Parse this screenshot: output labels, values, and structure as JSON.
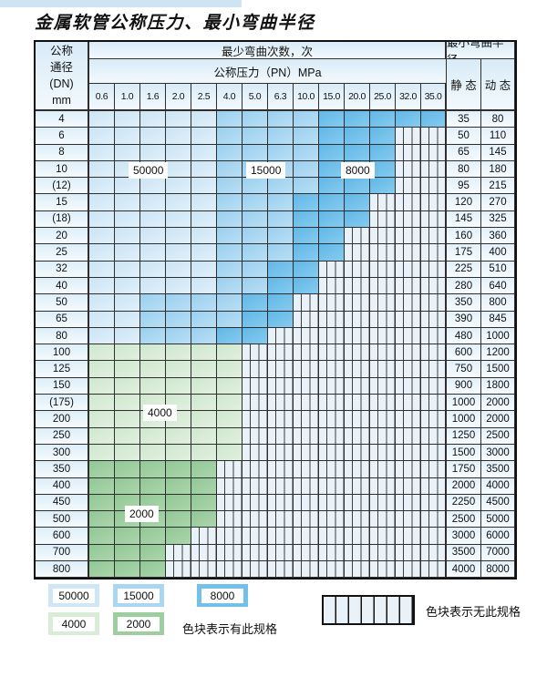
{
  "title": "金属软管公称压力、最小弯曲半径",
  "chart_data": {
    "type": "table",
    "title": "金属软管公称压力、最小弯曲半径",
    "col_group_label": "最少弯曲次数，次",
    "pressure_label": "公称压力（PN）MPa",
    "dn_label_lines": [
      "公称",
      "通径",
      "(DN)",
      "mm"
    ],
    "radius_label": "最小弯曲半径",
    "static_label": "静 态",
    "dynamic_label": "动 态",
    "pressures_mpa": [
      "0.6",
      "1.0",
      "1.6",
      "2.0",
      "2.5",
      "4.0",
      "5.0",
      "6.3",
      "10.0",
      "15.0",
      "20.0",
      "25.0",
      "32.0",
      "35.0"
    ],
    "legend_note_has": "色块表示有此规格",
    "legend_note_none": "色块表示无此规格",
    "cycle_colors": {
      "50000": "#cfe6f5",
      "15000": "#a9d6f0",
      "8000": "#73c1ea",
      "4000": "#d9ecd8",
      "2000": "#9dce9f",
      "no_spec_fill": "#eaf2f9"
    },
    "region_labels": [
      {
        "id": "rl-50000",
        "text": "50000"
      },
      {
        "id": "rl-15000",
        "text": "15000"
      },
      {
        "id": "rl-8000",
        "text": "8000"
      },
      {
        "id": "rl-4000",
        "text": "4000"
      },
      {
        "id": "rl-2000",
        "text": "2000"
      }
    ],
    "rows": [
      {
        "dn": "4",
        "static": "35",
        "dynamic": "80",
        "bands": [
          {
            "cycles": "50000",
            "from": "0.6",
            "to": "2.5"
          },
          {
            "cycles": "15000",
            "from": "4.0",
            "to": "10.0"
          },
          {
            "cycles": "8000",
            "from": "15.0",
            "to": "35.0"
          }
        ]
      },
      {
        "dn": "6",
        "static": "50",
        "dynamic": "110",
        "bands": [
          {
            "cycles": "50000",
            "from": "0.6",
            "to": "2.5"
          },
          {
            "cycles": "15000",
            "from": "4.0",
            "to": "10.0"
          },
          {
            "cycles": "8000",
            "from": "15.0",
            "to": "25.0"
          }
        ]
      },
      {
        "dn": "8",
        "static": "65",
        "dynamic": "145",
        "bands": [
          {
            "cycles": "50000",
            "from": "0.6",
            "to": "2.5"
          },
          {
            "cycles": "15000",
            "from": "4.0",
            "to": "10.0"
          },
          {
            "cycles": "8000",
            "from": "15.0",
            "to": "25.0"
          }
        ]
      },
      {
        "dn": "10",
        "static": "80",
        "dynamic": "180",
        "bands": [
          {
            "cycles": "50000",
            "from": "0.6",
            "to": "2.5"
          },
          {
            "cycles": "15000",
            "from": "4.0",
            "to": "10.0"
          },
          {
            "cycles": "8000",
            "from": "15.0",
            "to": "25.0"
          }
        ]
      },
      {
        "dn": "(12)",
        "static": "95",
        "dynamic": "215",
        "bands": [
          {
            "cycles": "50000",
            "from": "0.6",
            "to": "2.5"
          },
          {
            "cycles": "15000",
            "from": "4.0",
            "to": "10.0"
          },
          {
            "cycles": "8000",
            "from": "15.0",
            "to": "25.0"
          }
        ]
      },
      {
        "dn": "15",
        "static": "120",
        "dynamic": "270",
        "bands": [
          {
            "cycles": "50000",
            "from": "0.6",
            "to": "2.5"
          },
          {
            "cycles": "15000",
            "from": "4.0",
            "to": "6.3"
          },
          {
            "cycles": "8000",
            "from": "10.0",
            "to": "20.0"
          }
        ]
      },
      {
        "dn": "(18)",
        "static": "145",
        "dynamic": "325",
        "bands": [
          {
            "cycles": "50000",
            "from": "0.6",
            "to": "2.5"
          },
          {
            "cycles": "15000",
            "from": "4.0",
            "to": "6.3"
          },
          {
            "cycles": "8000",
            "from": "10.0",
            "to": "20.0"
          }
        ]
      },
      {
        "dn": "20",
        "static": "160",
        "dynamic": "360",
        "bands": [
          {
            "cycles": "50000",
            "from": "0.6",
            "to": "2.5"
          },
          {
            "cycles": "15000",
            "from": "4.0",
            "to": "6.3"
          },
          {
            "cycles": "8000",
            "from": "10.0",
            "to": "15.0"
          }
        ]
      },
      {
        "dn": "25",
        "static": "175",
        "dynamic": "400",
        "bands": [
          {
            "cycles": "50000",
            "from": "0.6",
            "to": "2.5"
          },
          {
            "cycles": "15000",
            "from": "4.0",
            "to": "6.3"
          },
          {
            "cycles": "8000",
            "from": "10.0",
            "to": "15.0"
          }
        ]
      },
      {
        "dn": "32",
        "static": "225",
        "dynamic": "510",
        "bands": [
          {
            "cycles": "50000",
            "from": "0.6",
            "to": "2.5"
          },
          {
            "cycles": "15000",
            "from": "4.0",
            "to": "5.0"
          },
          {
            "cycles": "8000",
            "from": "6.3",
            "to": "10.0"
          }
        ]
      },
      {
        "dn": "40",
        "static": "280",
        "dynamic": "640",
        "bands": [
          {
            "cycles": "50000",
            "from": "0.6",
            "to": "2.5"
          },
          {
            "cycles": "15000",
            "from": "4.0",
            "to": "5.0"
          },
          {
            "cycles": "8000",
            "from": "6.3",
            "to": "10.0"
          }
        ]
      },
      {
        "dn": "50",
        "static": "350",
        "dynamic": "800",
        "bands": [
          {
            "cycles": "50000",
            "from": "0.6",
            "to": "1.0"
          },
          {
            "cycles": "15000",
            "from": "1.6",
            "to": "4.0"
          },
          {
            "cycles": "8000",
            "from": "5.0",
            "to": "6.3"
          }
        ]
      },
      {
        "dn": "65",
        "static": "390",
        "dynamic": "845",
        "bands": [
          {
            "cycles": "50000",
            "from": "0.6",
            "to": "1.0"
          },
          {
            "cycles": "15000",
            "from": "1.6",
            "to": "4.0"
          },
          {
            "cycles": "8000",
            "from": "5.0",
            "to": "6.3"
          }
        ]
      },
      {
        "dn": "80",
        "static": "480",
        "dynamic": "1000",
        "bands": [
          {
            "cycles": "50000",
            "from": "0.6",
            "to": "1.0"
          },
          {
            "cycles": "15000",
            "from": "1.6",
            "to": "2.5"
          },
          {
            "cycles": "8000",
            "from": "4.0",
            "to": "5.0"
          }
        ]
      },
      {
        "dn": "100",
        "static": "600",
        "dynamic": "1200",
        "bands": [
          {
            "cycles": "4000",
            "from": "0.6",
            "to": "4.0"
          }
        ]
      },
      {
        "dn": "125",
        "static": "750",
        "dynamic": "1500",
        "bands": [
          {
            "cycles": "4000",
            "from": "0.6",
            "to": "4.0"
          }
        ]
      },
      {
        "dn": "150",
        "static": "900",
        "dynamic": "1800",
        "bands": [
          {
            "cycles": "4000",
            "from": "0.6",
            "to": "4.0"
          }
        ]
      },
      {
        "dn": "(175)",
        "static": "1000",
        "dynamic": "2000",
        "bands": [
          {
            "cycles": "4000",
            "from": "0.6",
            "to": "4.0"
          }
        ]
      },
      {
        "dn": "200",
        "static": "1000",
        "dynamic": "2000",
        "bands": [
          {
            "cycles": "4000",
            "from": "0.6",
            "to": "4.0"
          }
        ]
      },
      {
        "dn": "250",
        "static": "1250",
        "dynamic": "2500",
        "bands": [
          {
            "cycles": "4000",
            "from": "0.6",
            "to": "4.0"
          }
        ]
      },
      {
        "dn": "300",
        "static": "1500",
        "dynamic": "3000",
        "bands": [
          {
            "cycles": "4000",
            "from": "0.6",
            "to": "4.0"
          }
        ]
      },
      {
        "dn": "350",
        "static": "1750",
        "dynamic": "3500",
        "bands": [
          {
            "cycles": "2000",
            "from": "0.6",
            "to": "2.5"
          }
        ]
      },
      {
        "dn": "400",
        "static": "2000",
        "dynamic": "4000",
        "bands": [
          {
            "cycles": "2000",
            "from": "0.6",
            "to": "2.5"
          }
        ]
      },
      {
        "dn": "450",
        "static": "2250",
        "dynamic": "4500",
        "bands": [
          {
            "cycles": "2000",
            "from": "0.6",
            "to": "2.5"
          }
        ]
      },
      {
        "dn": "500",
        "static": "2500",
        "dynamic": "5000",
        "bands": [
          {
            "cycles": "2000",
            "from": "0.6",
            "to": "2.5"
          }
        ]
      },
      {
        "dn": "600",
        "static": "3000",
        "dynamic": "6000",
        "bands": [
          {
            "cycles": "2000",
            "from": "0.6",
            "to": "2.0"
          }
        ]
      },
      {
        "dn": "700",
        "static": "3500",
        "dynamic": "7000",
        "bands": [
          {
            "cycles": "2000",
            "from": "0.6",
            "to": "1.6"
          }
        ]
      },
      {
        "dn": "800",
        "static": "4000",
        "dynamic": "8000",
        "bands": [
          {
            "cycles": "2000",
            "from": "0.6",
            "to": "1.6"
          }
        ]
      }
    ]
  },
  "legend": {
    "items": [
      {
        "label": "50000"
      },
      {
        "label": "15000"
      },
      {
        "label": "8000"
      },
      {
        "label": "4000"
      },
      {
        "label": "2000"
      }
    ],
    "has_spec_text": "色块表示有此规格",
    "no_spec_text": "色块表示无此规格"
  }
}
